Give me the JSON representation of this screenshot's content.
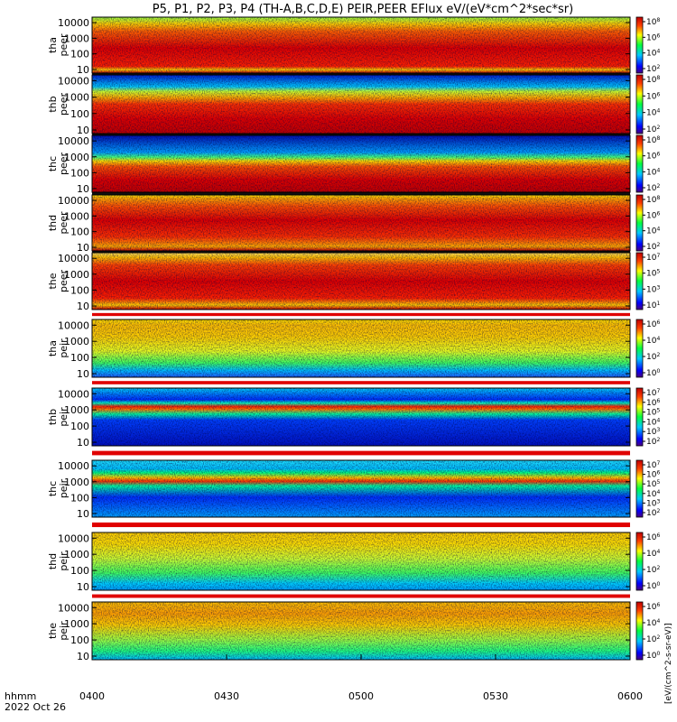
{
  "chart_data": {
    "type": "heatmap",
    "title": "P5, P1, P2, P3, P4 (TH-A,B,C,D,E) PEIR,PEER EFlux eV/(eV*cm^2*sec*sr)",
    "x_label": "hhmm",
    "date_label": "2022 Oct 26",
    "x_ticks": [
      "0400",
      "0430",
      "0500",
      "0530",
      "0600"
    ],
    "y_scale": "log",
    "y_ticks": [
      "10",
      "100",
      "1000",
      "10000"
    ],
    "colorbar_unit": "[eV/(cm^2-s-sr-eV)]",
    "panels": [
      {
        "line1": "tha",
        "line2": "peer",
        "cbar": [
          "10^8",
          "10^6",
          "10^4",
          "10^2"
        ]
      },
      {
        "line1": "thb",
        "line2": "peer",
        "cbar": [
          "10^8",
          "10^6",
          "10^4",
          "10^2"
        ]
      },
      {
        "line1": "thc",
        "line2": "peer",
        "cbar": [
          "10^8",
          "10^6",
          "10^4",
          "10^2"
        ]
      },
      {
        "line1": "thd",
        "line2": "peer",
        "cbar": [
          "10^8",
          "10^6",
          "10^4",
          "10^2"
        ]
      },
      {
        "line1": "the",
        "line2": "peer",
        "cbar": [
          "10^7",
          "10^5",
          "10^3",
          "10^1"
        ]
      },
      {
        "line1": "tha",
        "line2": "peir",
        "cbar": [
          "10^6",
          "10^4",
          "10^2",
          "10^0"
        ]
      },
      {
        "line1": "thb",
        "line2": "peir",
        "cbar": [
          "10^7",
          "10^6",
          "10^5",
          "10^4",
          "10^3",
          "10^2"
        ]
      },
      {
        "line1": "thc",
        "line2": "peir",
        "cbar": [
          "10^7",
          "10^6",
          "10^5",
          "10^4",
          "10^3",
          "10^2"
        ]
      },
      {
        "line1": "thd",
        "line2": "peir",
        "cbar": [
          "10^6",
          "10^4",
          "10^2",
          "10^0"
        ]
      },
      {
        "line1": "the",
        "line2": "peir",
        "cbar": [
          "10^6",
          "10^4",
          "10^2",
          "10^0"
        ]
      }
    ]
  }
}
